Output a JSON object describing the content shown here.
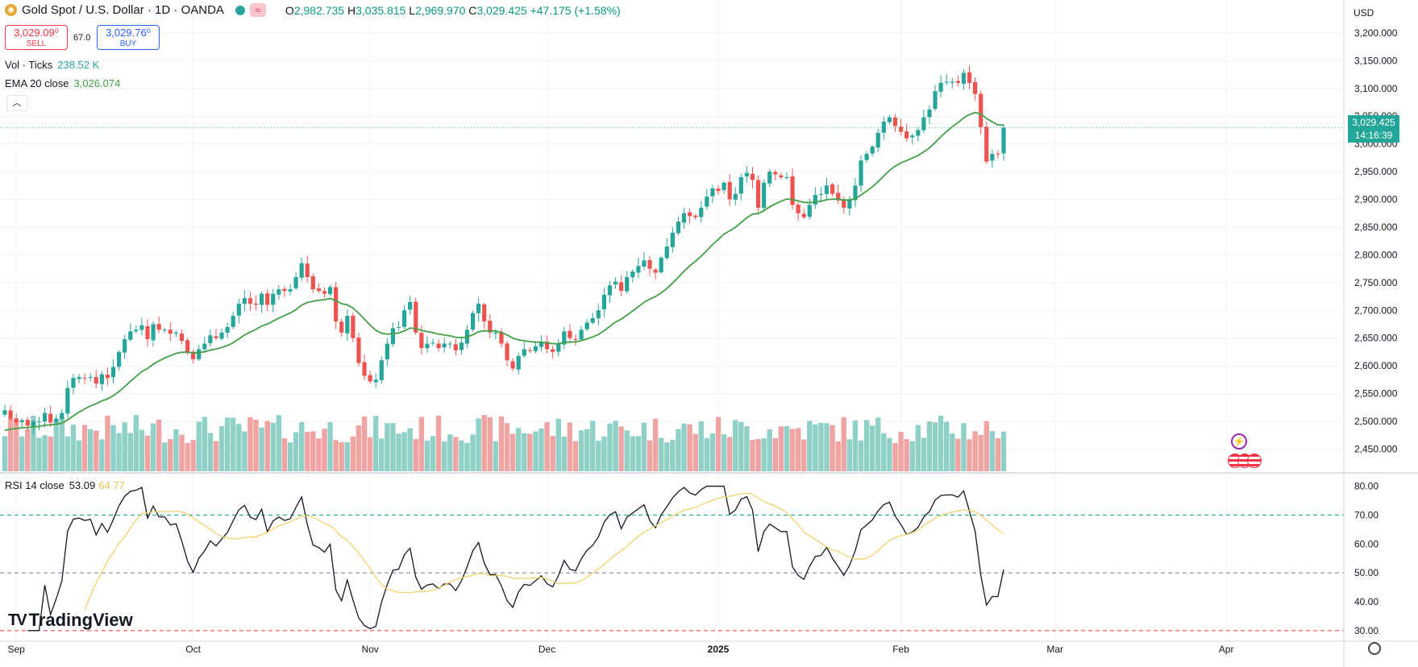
{
  "header": {
    "symbol_title": "Gold Spot / U.S. Dollar · 1D · OANDA",
    "ohlc": {
      "o_label": "O",
      "o": "2,982.735",
      "h_label": "H",
      "h": "3,035.815",
      "l_label": "L",
      "l": "2,969.970",
      "c_label": "C",
      "c": "3,029.425",
      "change": "+47.175 (+1.58%)"
    },
    "icons": [
      "gold-coin-icon",
      "status-dot-icon",
      "wave-icon"
    ]
  },
  "trade": {
    "sell_price": "3,029.09⁰",
    "sell_label": "SELL",
    "spread": "67.0",
    "buy_price": "3,029.76⁰",
    "buy_label": "BUY"
  },
  "indicators": {
    "volume": {
      "label": "Vol · Ticks",
      "value": "238.52 K"
    },
    "ema": {
      "label": "EMA 20 close",
      "value": "3,026.074"
    },
    "rsi": {
      "label": "RSI 14 close",
      "value": "53.09",
      "ma_value": "64.77"
    }
  },
  "price_axis": {
    "currency": "USD",
    "last_price": "3,029.425",
    "countdown": "14:16:39"
  },
  "branding": {
    "logo_text": "TradingView"
  },
  "colors": {
    "up": "#26a69a",
    "down": "#ef5350",
    "vol_up": "#8fd0c8",
    "vol_down": "#f0a3a3",
    "ema": "#43a047",
    "rsi": "#131722",
    "rsi_ma": "#f1d26a",
    "overbought_line": "#089981",
    "oversold_line": "#f23645"
  },
  "chart_data": [
    {
      "type": "candlestick",
      "title": "Gold Spot / U.S. Dollar · 1D · OANDA",
      "x_tick_labels": [
        "Sep",
        "Oct",
        "Nov",
        "Dec",
        "2025",
        "Feb",
        "Mar",
        "Apr"
      ],
      "x_tick_bar_index": [
        2,
        33,
        64,
        95,
        125,
        157,
        184,
        214
      ],
      "y_tick_labels": [
        "2,450.000",
        "2,500.000",
        "2,550.000",
        "2,600.000",
        "2,650.000",
        "2,700.000",
        "2,750.000",
        "2,800.000",
        "2,850.000",
        "2,900.000",
        "2,950.000",
        "3,000.000",
        "3,050.000",
        "3,100.000",
        "3,150.000",
        "3,200.000"
      ],
      "ylim": [
        2410,
        3210
      ],
      "close": [
        2520,
        2505,
        2498,
        2502,
        2492,
        2500,
        2500,
        2515,
        2498,
        2505,
        2515,
        2560,
        2578,
        2580,
        2578,
        2580,
        2568,
        2585,
        2578,
        2598,
        2625,
        2648,
        2662,
        2665,
        2673,
        2648,
        2675,
        2665,
        2665,
        2658,
        2660,
        2645,
        2625,
        2612,
        2630,
        2640,
        2655,
        2650,
        2660,
        2670,
        2690,
        2712,
        2722,
        2712,
        2710,
        2730,
        2710,
        2730,
        2738,
        2735,
        2738,
        2760,
        2785,
        2760,
        2738,
        2735,
        2730,
        2742,
        2680,
        2660,
        2690,
        2650,
        2605,
        2582,
        2572,
        2575,
        2610,
        2640,
        2668,
        2670,
        2700,
        2715,
        2660,
        2632,
        2640,
        2642,
        2632,
        2640,
        2640,
        2628,
        2642,
        2665,
        2695,
        2712,
        2680,
        2660,
        2660,
        2640,
        2610,
        2595,
        2618,
        2630,
        2628,
        2635,
        2642,
        2630,
        2625,
        2640,
        2662,
        2650,
        2648,
        2665,
        2678,
        2686,
        2700,
        2728,
        2745,
        2752,
        2735,
        2760,
        2770,
        2780,
        2790,
        2775,
        2768,
        2795,
        2815,
        2840,
        2860,
        2875,
        2870,
        2868,
        2885,
        2905,
        2920,
        2915,
        2930,
        2900,
        2910,
        2940,
        2948,
        2935,
        2885,
        2930,
        2950,
        2945,
        2940,
        2940,
        2890,
        2875,
        2868,
        2890,
        2908,
        2910,
        2925,
        2910,
        2898,
        2885,
        2900,
        2925,
        2970,
        2982,
        2995,
        3020,
        3040,
        3048,
        3032,
        3022,
        3010,
        3015,
        3025,
        3048,
        3062,
        3095,
        3110,
        3112,
        3112,
        3110,
        3128,
        3110,
        3090,
        3030,
        2968,
        2982,
        2982,
        3029.425
      ],
      "series": [
        {
          "name": "EMA 20 close",
          "last_value": 3026.074
        },
        {
          "name": "Vol · Ticks",
          "last_value": "238.52 K"
        }
      ]
    },
    {
      "type": "line",
      "title": "RSI 14 close",
      "y_tick_labels": [
        "30.00",
        "40.00",
        "50.00",
        "60.00",
        "70.00",
        "80.00"
      ],
      "ylim": [
        28,
        81
      ],
      "bands": [
        70,
        50,
        30
      ],
      "series": [
        {
          "name": "RSI 14 close",
          "last_value": 53.09
        },
        {
          "name": "RSI MA",
          "last_value": 64.77
        }
      ]
    }
  ]
}
